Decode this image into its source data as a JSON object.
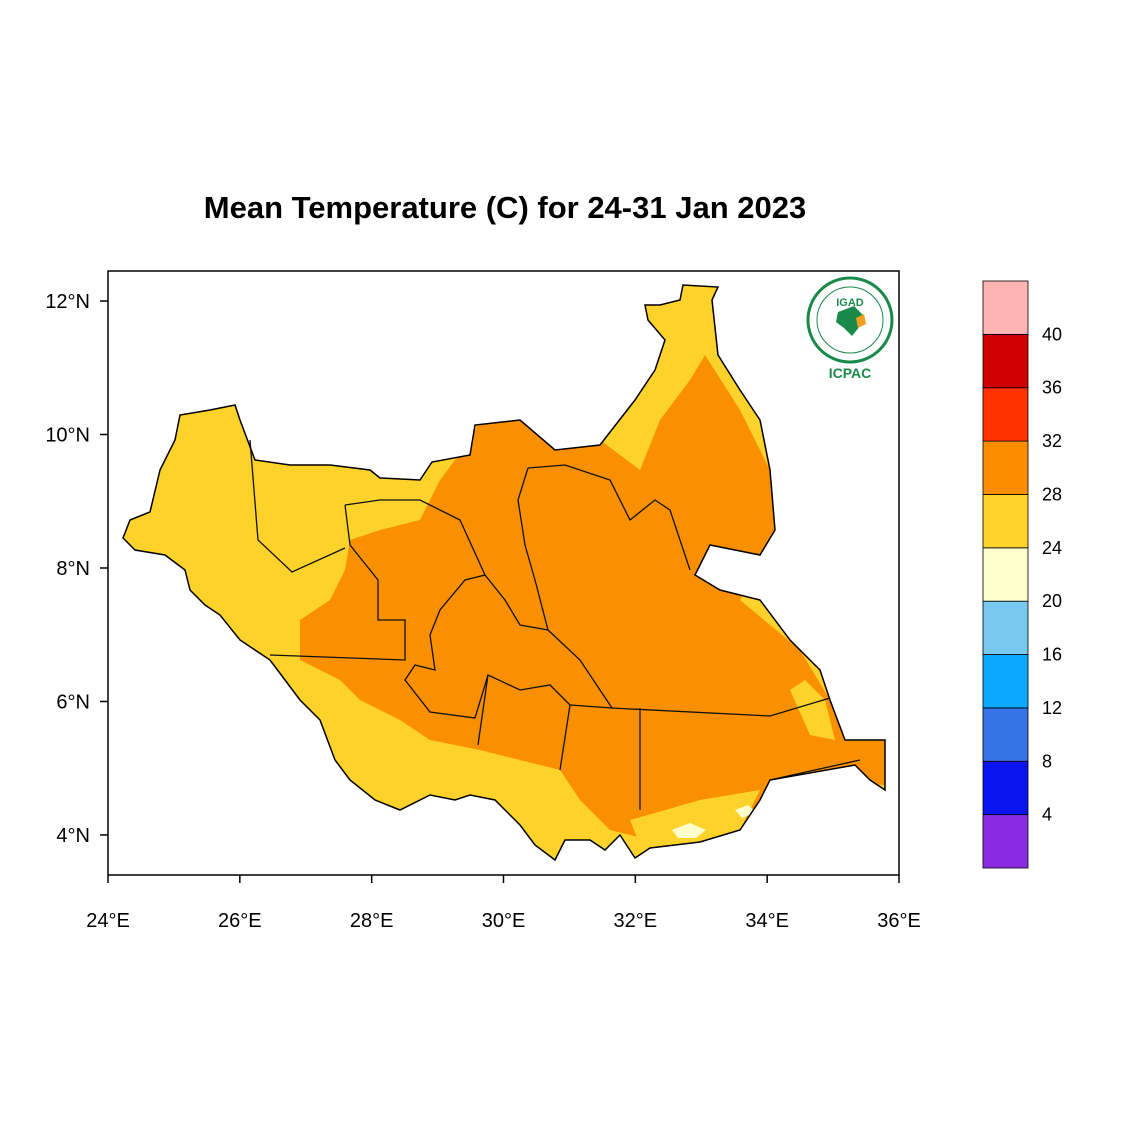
{
  "title": "Mean Temperature (C) for 24-31 Jan 2023",
  "map": {
    "lon_ticks": [
      "24°E",
      "26°E",
      "28°E",
      "30°E",
      "32°E",
      "34°E",
      "36°E"
    ],
    "lat_ticks": [
      "4°N",
      "6°N",
      "8°N",
      "10°N",
      "12°N"
    ],
    "lon_range": [
      24,
      36
    ],
    "lat_range": [
      3.4,
      12.45
    ]
  },
  "colorbar": {
    "labels": [
      "4",
      "8",
      "12",
      "16",
      "20",
      "24",
      "28",
      "32",
      "36",
      "40"
    ],
    "colors": [
      "#8a2be2",
      "#0a14f0",
      "#3574e8",
      "#0ba8ff",
      "#78c8f0",
      "#ffffcc",
      "#fdd22a",
      "#fa8e00",
      "#ff3200",
      "#d00000",
      "#ffb4b4"
    ]
  },
  "logo": {
    "top_text": "IGAD",
    "bottom_text": "ICPAC"
  },
  "colors": {
    "warm": "#fa9000",
    "mild": "#fdd22a",
    "cool": "#ffffcc"
  }
}
